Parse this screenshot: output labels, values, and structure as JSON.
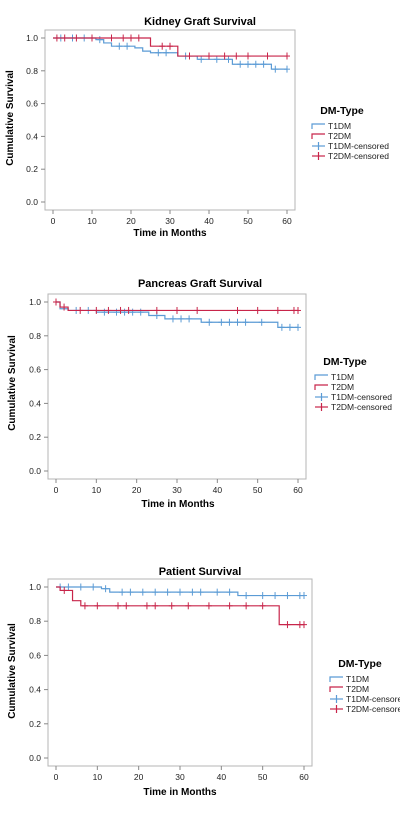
{
  "colors": {
    "t1dm": "#5b9bd5",
    "t2dm": "#c8254a"
  },
  "legend": {
    "title": "DM-Type",
    "entries": [
      {
        "label": "T1DM",
        "kind": "line",
        "series": "t1dm"
      },
      {
        "label": "T2DM",
        "kind": "line",
        "series": "t2dm"
      },
      {
        "label": "T1DM-censored",
        "kind": "censor",
        "series": "t1dm"
      },
      {
        "label": "T2DM-censored",
        "kind": "censor",
        "series": "t2dm"
      }
    ]
  },
  "chart_data": [
    {
      "type": "line",
      "subtype": "kaplan-meier step",
      "title": "Kidney Graft Survival",
      "xlabel": "Time in Months",
      "ylabel": "Cumulative Survival",
      "xlim": [
        0,
        60
      ],
      "ylim": [
        0,
        1.0
      ],
      "x_ticks": [
        0,
        10,
        20,
        30,
        40,
        50,
        60
      ],
      "y_ticks": [
        0.0,
        0.2,
        0.4,
        0.6,
        0.8,
        1.0
      ],
      "series": [
        {
          "name": "T1DM",
          "color": "t1dm",
          "steps": [
            [
              0,
              1.0
            ],
            [
              11,
              0.99
            ],
            [
              13,
              0.97
            ],
            [
              15,
              0.95
            ],
            [
              21,
              0.94
            ],
            [
              23,
              0.92
            ],
            [
              25,
              0.91
            ],
            [
              32,
              0.89
            ],
            [
              37,
              0.87
            ],
            [
              46,
              0.84
            ],
            [
              56,
              0.81
            ],
            [
              60,
              0.81
            ]
          ],
          "censored": [
            [
              2,
              1.0
            ],
            [
              5,
              1.0
            ],
            [
              8,
              1.0
            ],
            [
              12,
              0.99
            ],
            [
              17,
              0.95
            ],
            [
              19,
              0.95
            ],
            [
              27,
              0.91
            ],
            [
              29,
              0.91
            ],
            [
              34,
              0.89
            ],
            [
              38,
              0.87
            ],
            [
              42,
              0.87
            ],
            [
              45,
              0.87
            ],
            [
              48,
              0.84
            ],
            [
              50,
              0.84
            ],
            [
              52,
              0.84
            ],
            [
              54,
              0.84
            ],
            [
              57,
              0.81
            ],
            [
              60,
              0.81
            ]
          ]
        },
        {
          "name": "T2DM",
          "color": "t2dm",
          "steps": [
            [
              0,
              1.0
            ],
            [
              25,
              0.95
            ],
            [
              32,
              0.89
            ],
            [
              60,
              0.89
            ]
          ],
          "censored": [
            [
              1,
              1.0
            ],
            [
              3,
              1.0
            ],
            [
              6,
              1.0
            ],
            [
              10,
              1.0
            ],
            [
              15,
              1.0
            ],
            [
              18,
              1.0
            ],
            [
              20,
              1.0
            ],
            [
              22,
              1.0
            ],
            [
              28,
              0.95
            ],
            [
              30,
              0.95
            ],
            [
              35,
              0.89
            ],
            [
              40,
              0.89
            ],
            [
              44,
              0.89
            ],
            [
              47,
              0.89
            ],
            [
              50,
              0.89
            ],
            [
              55,
              0.89
            ],
            [
              60,
              0.89
            ]
          ]
        }
      ]
    },
    {
      "type": "line",
      "subtype": "kaplan-meier step",
      "title": "Pancreas Graft Survival",
      "xlabel": "Time in Months",
      "ylabel": "Cumulative Survival",
      "xlim": [
        0,
        60
      ],
      "ylim": [
        0,
        1.0
      ],
      "x_ticks": [
        0,
        10,
        20,
        30,
        40,
        50,
        60
      ],
      "y_ticks": [
        0.0,
        0.2,
        0.4,
        0.6,
        0.8,
        1.0
      ],
      "series": [
        {
          "name": "T1DM",
          "color": "t1dm",
          "steps": [
            [
              0,
              1.0
            ],
            [
              1,
              0.96
            ],
            [
              3,
              0.95
            ],
            [
              10,
              0.94
            ],
            [
              23,
              0.92
            ],
            [
              27,
              0.9
            ],
            [
              36,
              0.88
            ],
            [
              55,
              0.85
            ],
            [
              60,
              0.85
            ]
          ],
          "censored": [
            [
              5,
              0.95
            ],
            [
              8,
              0.95
            ],
            [
              12,
              0.94
            ],
            [
              15,
              0.94
            ],
            [
              17,
              0.94
            ],
            [
              19,
              0.94
            ],
            [
              21,
              0.94
            ],
            [
              25,
              0.92
            ],
            [
              29,
              0.9
            ],
            [
              31,
              0.9
            ],
            [
              33,
              0.9
            ],
            [
              38,
              0.88
            ],
            [
              41,
              0.88
            ],
            [
              43,
              0.88
            ],
            [
              45,
              0.88
            ],
            [
              47,
              0.88
            ],
            [
              51,
              0.88
            ],
            [
              56,
              0.85
            ],
            [
              58,
              0.85
            ],
            [
              60,
              0.85
            ]
          ]
        },
        {
          "name": "T2DM",
          "color": "t2dm",
          "steps": [
            [
              0,
              1.0
            ],
            [
              1,
              0.97
            ],
            [
              3,
              0.95
            ],
            [
              60,
              0.95
            ]
          ],
          "censored": [
            [
              0,
              1.0
            ],
            [
              2,
              0.97
            ],
            [
              6,
              0.95
            ],
            [
              10,
              0.95
            ],
            [
              13,
              0.95
            ],
            [
              16,
              0.95
            ],
            [
              18,
              0.95
            ],
            [
              25,
              0.95
            ],
            [
              30,
              0.95
            ],
            [
              35,
              0.95
            ],
            [
              45,
              0.95
            ],
            [
              50,
              0.95
            ],
            [
              55,
              0.95
            ],
            [
              59,
              0.95
            ],
            [
              60,
              0.95
            ]
          ]
        }
      ]
    },
    {
      "type": "line",
      "subtype": "kaplan-meier step",
      "title": "Patient Survival",
      "xlabel": "Time in Months",
      "ylabel": "Cumulative Survival",
      "xlim": [
        0,
        60
      ],
      "ylim": [
        0,
        1.0
      ],
      "x_ticks": [
        0,
        10,
        20,
        30,
        40,
        50,
        60
      ],
      "y_ticks": [
        0.0,
        0.2,
        0.4,
        0.6,
        0.8,
        1.0
      ],
      "series": [
        {
          "name": "T1DM",
          "color": "t1dm",
          "steps": [
            [
              0,
              1.0
            ],
            [
              11,
              0.99
            ],
            [
              13,
              0.97
            ],
            [
              44,
              0.95
            ],
            [
              60,
              0.95
            ]
          ],
          "censored": [
            [
              1,
              1.0
            ],
            [
              3,
              1.0
            ],
            [
              6,
              1.0
            ],
            [
              9,
              1.0
            ],
            [
              12,
              0.99
            ],
            [
              16,
              0.97
            ],
            [
              18,
              0.97
            ],
            [
              21,
              0.97
            ],
            [
              24,
              0.97
            ],
            [
              27,
              0.97
            ],
            [
              30,
              0.97
            ],
            [
              33,
              0.97
            ],
            [
              35,
              0.97
            ],
            [
              39,
              0.97
            ],
            [
              42,
              0.97
            ],
            [
              46,
              0.95
            ],
            [
              50,
              0.95
            ],
            [
              53,
              0.95
            ],
            [
              56,
              0.95
            ],
            [
              59,
              0.95
            ],
            [
              60,
              0.95
            ]
          ]
        },
        {
          "name": "T2DM",
          "color": "t2dm",
          "steps": [
            [
              0,
              1.0
            ],
            [
              1,
              0.98
            ],
            [
              4,
              0.92
            ],
            [
              6,
              0.89
            ],
            [
              54,
              0.78
            ],
            [
              60,
              0.78
            ]
          ],
          "censored": [
            [
              2,
              0.98
            ],
            [
              7,
              0.89
            ],
            [
              10,
              0.89
            ],
            [
              15,
              0.89
            ],
            [
              17,
              0.89
            ],
            [
              22,
              0.89
            ],
            [
              24,
              0.89
            ],
            [
              28,
              0.89
            ],
            [
              32,
              0.89
            ],
            [
              37,
              0.89
            ],
            [
              42,
              0.89
            ],
            [
              46,
              0.89
            ],
            [
              50,
              0.89
            ],
            [
              56,
              0.78
            ],
            [
              59,
              0.78
            ],
            [
              60,
              0.78
            ]
          ]
        }
      ]
    }
  ]
}
